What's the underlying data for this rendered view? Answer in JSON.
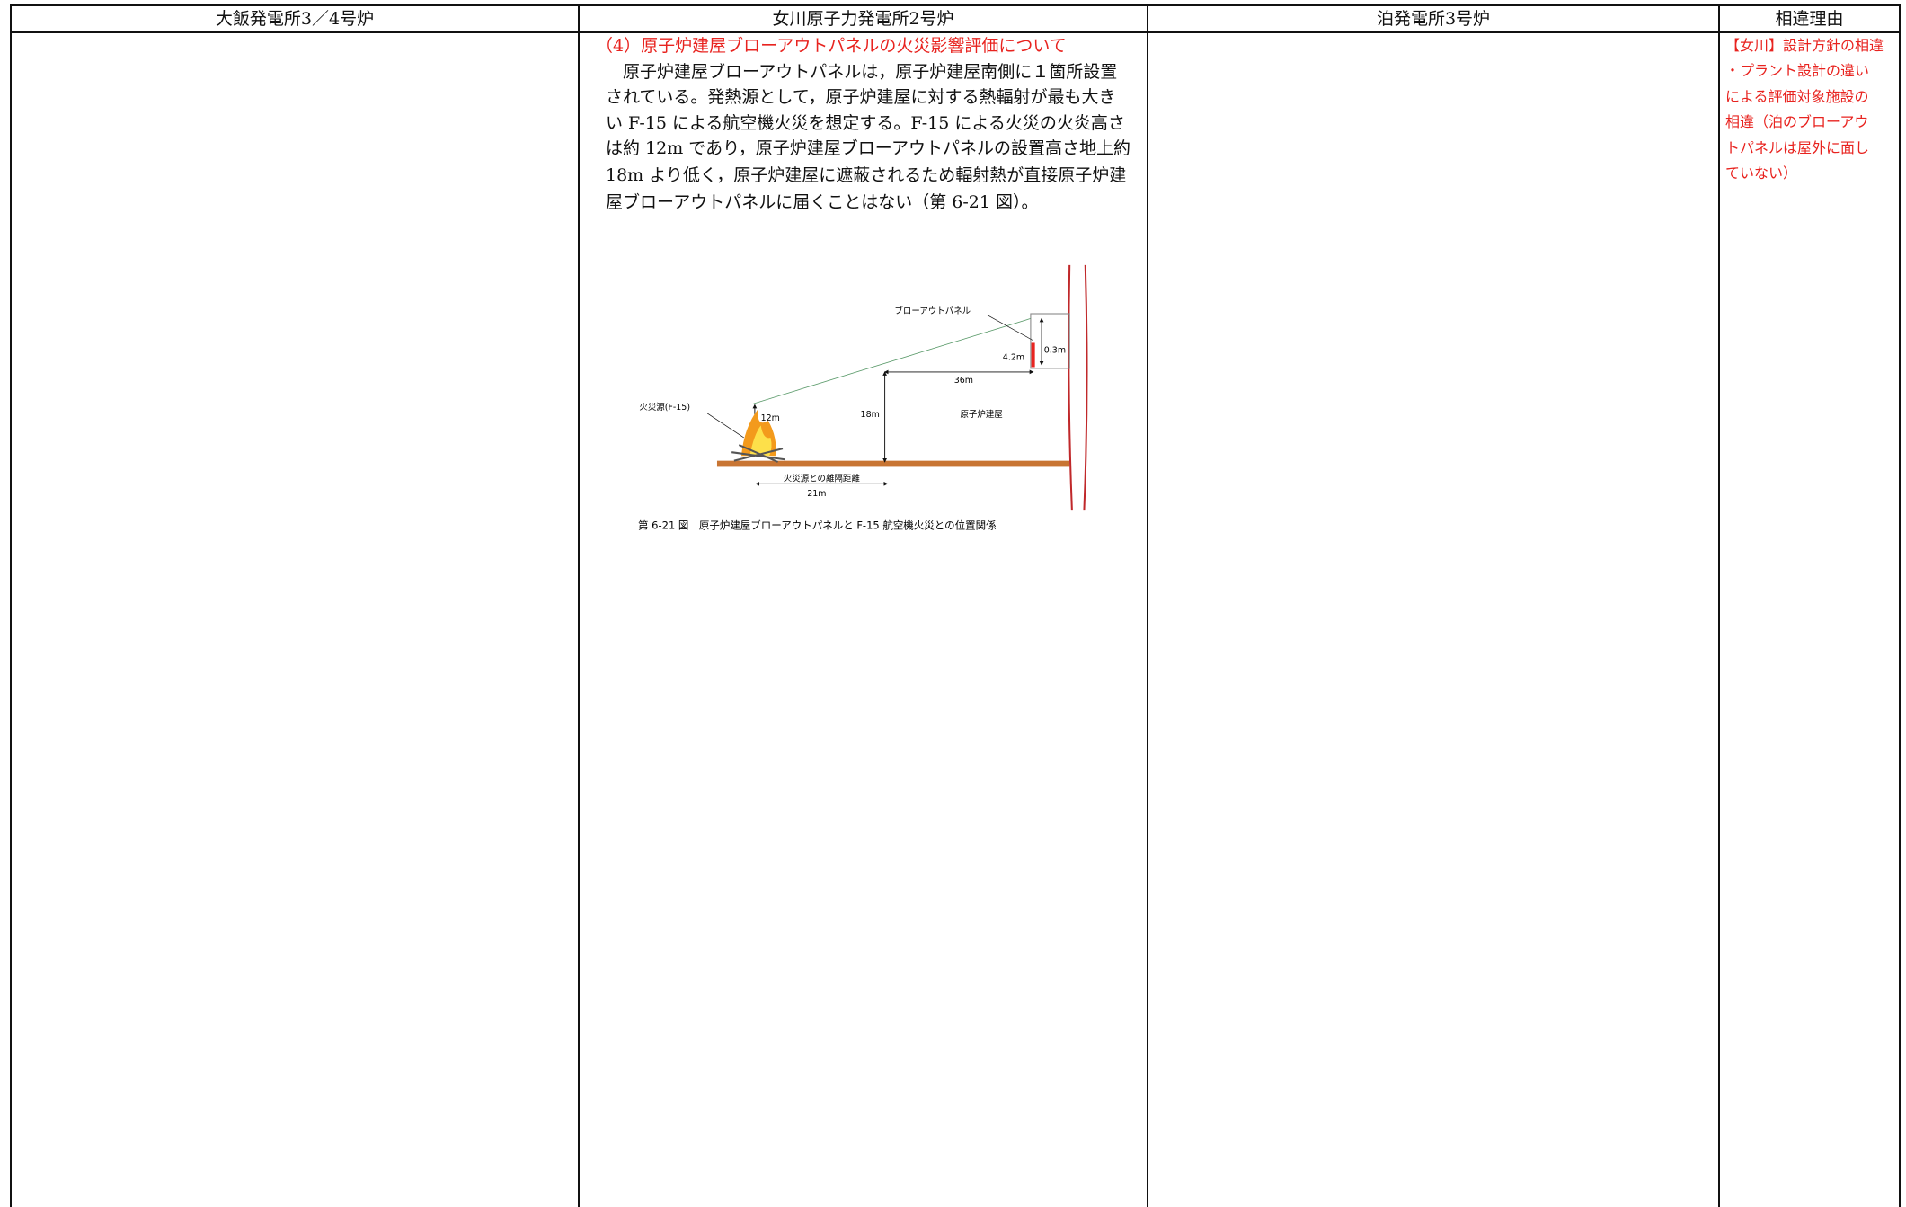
{
  "table": {
    "header": [
      "大飯発電所3／4号炉",
      "女川原子力発電所2号炉",
      "泊発電所3号炉",
      "相違理由"
    ]
  },
  "onagawa": {
    "heading": "（4）原子炉建屋ブローアウトパネルの火災影響評価について",
    "paragraph": [
      "原子炉建屋ブローアウトパネルは，原子炉建屋南側に１箇所設置",
      "されている。発熱源として，原子炉建屋に対する熱輻射が最も大き",
      "い F-15 による航空機火災を想定する。F-15 による火災の火炎高さ",
      "は約 12m であり，原子炉建屋ブローアウトパネルの設置高さ地上約",
      "18m より低く，原子炉建屋に遮蔽されるため輻射熱が直接原子炉建",
      "屋ブローアウトパネルに届くことはない（第 6-21 図）。"
    ],
    "figure": {
      "panel_label": "ブローアウトパネル",
      "panel_height": "0.3m",
      "panel_elevation_gap": "4.2m",
      "horizontal_distance": "36m",
      "building_height": "18m",
      "flame_height": "12m",
      "fire_source": "火災源(F-15)",
      "building_label": "原子炉建屋",
      "separation_label": "火災源との離隔距離",
      "separation_distance": "21m",
      "caption": "第 6-21 図　原子炉建屋ブローアウトパネルと F-15 航空機火災との位置関係"
    }
  },
  "reason": {
    "lines": [
      "【女川】設計方針の相違",
      "・プラント設計の違い",
      "による評価対象施設の",
      "相違（泊のブローアウ",
      "トパネルは屋外に面し",
      "ていない）"
    ]
  }
}
